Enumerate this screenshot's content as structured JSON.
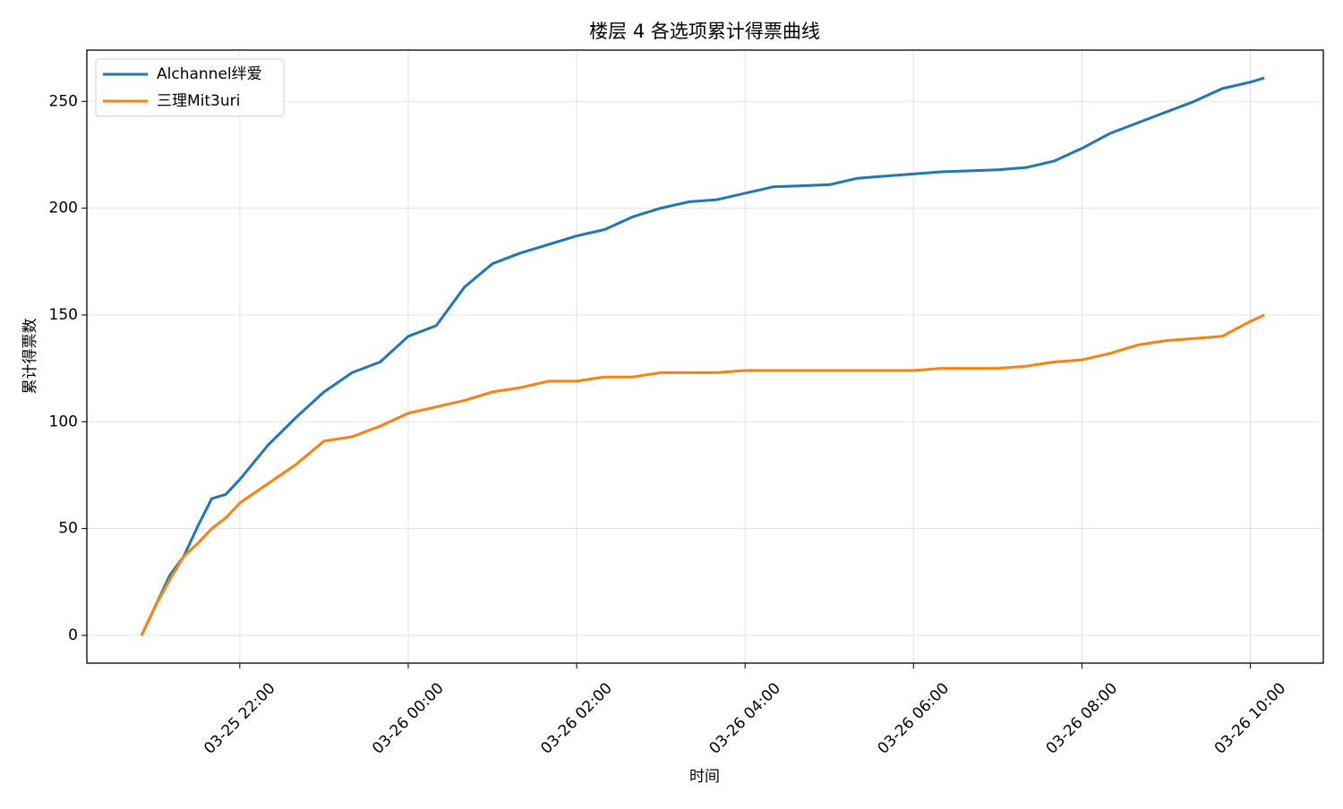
{
  "chart_data": {
    "type": "line",
    "title": "楼层 4 各选项累计得票曲线",
    "x_label": "时间",
    "y_label": "累计得票数",
    "x": [
      "03-25 20:50",
      "03-25 21:00",
      "03-25 21:10",
      "03-25 21:20",
      "03-25 21:30",
      "03-25 21:40",
      "03-25 21:50",
      "03-25 22:00",
      "03-25 22:20",
      "03-25 22:40",
      "03-25 23:00",
      "03-25 23:20",
      "03-25 23:40",
      "03-26 00:00",
      "03-26 00:20",
      "03-26 00:40",
      "03-26 01:00",
      "03-26 01:20",
      "03-26 01:40",
      "03-26 02:00",
      "03-26 02:20",
      "03-26 02:40",
      "03-26 03:00",
      "03-26 03:20",
      "03-26 03:40",
      "03-26 04:00",
      "03-26 04:20",
      "03-26 04:40",
      "03-26 05:00",
      "03-26 05:20",
      "03-26 05:40",
      "03-26 06:00",
      "03-26 06:20",
      "03-26 06:40",
      "03-26 07:00",
      "03-26 07:20",
      "03-26 07:40",
      "03-26 08:00",
      "03-26 08:20",
      "03-26 08:40",
      "03-26 09:00",
      "03-26 09:20",
      "03-26 09:40",
      "03-26 10:00",
      "03-26 10:10"
    ],
    "series": [
      {
        "name": "Alchannel绊爱",
        "color": "#1f77b4",
        "values": [
          0,
          14,
          28,
          37,
          51,
          64,
          66,
          73,
          89,
          102,
          114,
          123,
          128,
          140,
          145,
          163,
          174,
          179,
          183,
          187,
          190,
          196,
          200,
          203,
          204,
          207,
          210,
          210.5,
          211,
          214,
          215,
          216,
          217,
          217.5,
          218,
          219,
          222,
          228,
          235,
          240,
          245,
          250,
          256,
          259,
          261
        ]
      },
      {
        "name": "三理Mit3uri",
        "color": "#ff7f0e",
        "values": [
          0,
          14,
          26,
          37,
          43,
          50,
          55,
          62,
          71,
          80,
          91,
          93,
          98,
          104,
          107,
          110,
          114,
          116,
          119,
          119,
          121,
          121,
          123,
          123,
          123,
          124,
          124,
          124,
          124,
          124,
          124,
          124,
          125,
          125,
          125,
          126,
          128,
          129,
          132,
          136,
          138,
          139,
          140,
          147,
          150
        ]
      }
    ],
    "xlim": [
      "03-25 20:11",
      "03-26 10:52"
    ],
    "xticks": [
      "03-25 22:00",
      "03-26 00:00",
      "03-26 02:00",
      "03-26 04:00",
      "03-26 06:00",
      "03-26 08:00",
      "03-26 10:00"
    ],
    "ylim": [
      -13,
      274
    ],
    "yticks": [
      0,
      50,
      100,
      150,
      200,
      250
    ],
    "grid": true,
    "legend": "upper-left"
  }
}
